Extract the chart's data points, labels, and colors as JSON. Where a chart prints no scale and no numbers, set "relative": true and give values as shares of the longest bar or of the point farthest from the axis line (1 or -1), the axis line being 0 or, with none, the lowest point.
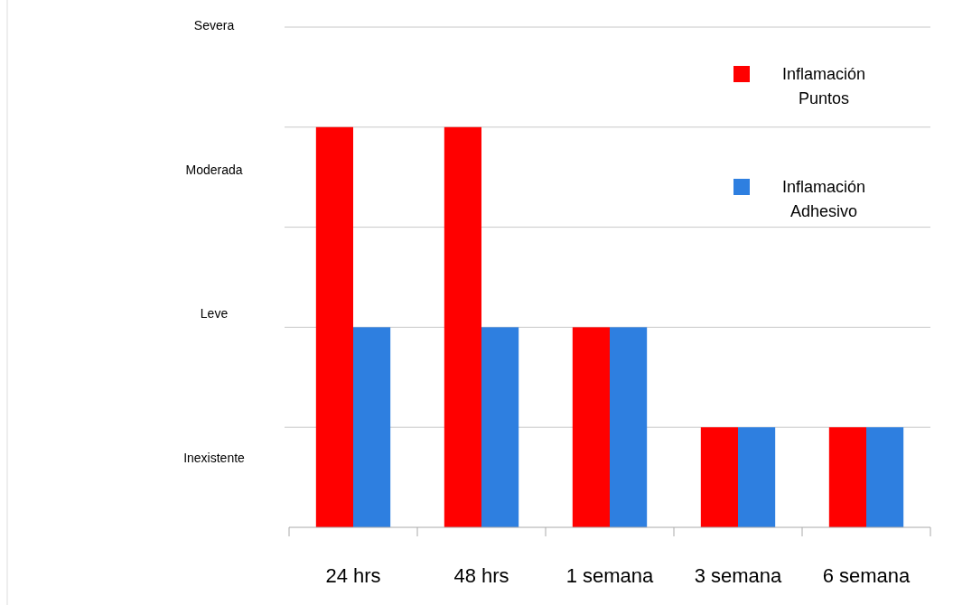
{
  "chart_data": {
    "type": "bar",
    "categories": [
      "24 hrs",
      "48 hrs",
      "1 semana",
      "3 semana",
      "6 semana"
    ],
    "series": [
      {
        "name": "Inflamación Puntos",
        "color": "#ff0000",
        "values": [
          1,
          1,
          0.5,
          0.25,
          0.25
        ]
      },
      {
        "name": "Inflamación Adhesivo",
        "color": "#2e7fe0",
        "values": [
          0.5,
          0.5,
          0.5,
          0.25,
          0.25
        ]
      }
    ],
    "relative": true,
    "annotations": [
      "Severa",
      "Moderada",
      "Leve",
      "Inexistente"
    ],
    "grid": "y",
    "legend": "top right"
  }
}
